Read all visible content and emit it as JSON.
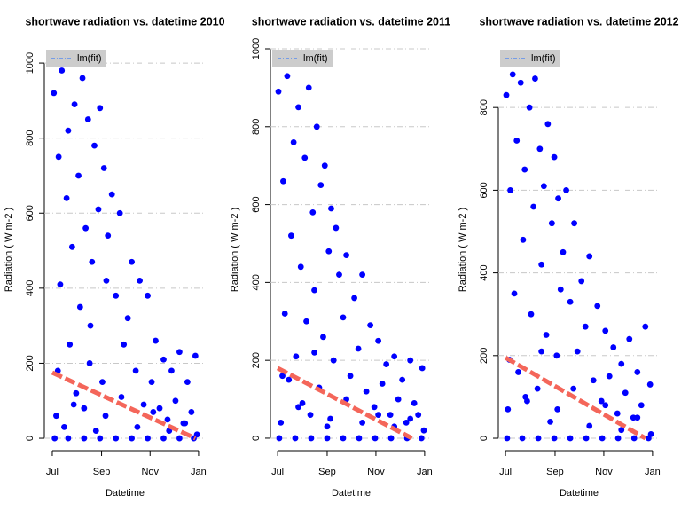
{
  "chart_data": [
    {
      "type": "scatter",
      "title": "shortwave radiation vs. datetime 2010",
      "xlabel": "Datetime",
      "ylabel": "Radiation ( W m-2 )",
      "xlim": [
        -10,
        193
      ],
      "ylim": [
        -33,
        1038
      ],
      "xticks": [
        {
          "value": 0,
          "label": "Jul"
        },
        {
          "value": 62,
          "label": "Sep"
        },
        {
          "value": 123,
          "label": "Nov"
        },
        {
          "value": 184,
          "label": "Jan"
        }
      ],
      "yticks": [
        0,
        200,
        400,
        600,
        800,
        1000
      ],
      "grid": true,
      "legend": "topleft",
      "series": [
        {
          "color": "#0000ff",
          "x": [
            2,
            5,
            8,
            10,
            12,
            15,
            18,
            20,
            22,
            25,
            28,
            30,
            33,
            35,
            38,
            40,
            42,
            45,
            48,
            50,
            53,
            55,
            58,
            60,
            63,
            65,
            68,
            70,
            75,
            80,
            85,
            90,
            95,
            100,
            105,
            110,
            115,
            120,
            125,
            130,
            135,
            140,
            145,
            150,
            155,
            160,
            165,
            170,
            175,
            180,
            3,
            20,
            40,
            60,
            80,
            100,
            120,
            140,
            160,
            178,
            7,
            27,
            47,
            67,
            87,
            107,
            127,
            147,
            167,
            182
          ],
          "values": [
            920,
            60,
            750,
            410,
            980,
            30,
            640,
            820,
            250,
            510,
            890,
            120,
            700,
            350,
            960,
            80,
            560,
            850,
            300,
            470,
            780,
            20,
            610,
            880,
            150,
            720,
            420,
            540,
            650,
            380,
            600,
            250,
            320,
            470,
            180,
            420,
            90,
            380,
            150,
            260,
            80,
            210,
            50,
            180,
            100,
            230,
            40,
            150,
            70,
            220,
            0,
            0,
            0,
            0,
            0,
            0,
            0,
            0,
            0,
            0,
            180,
            90,
            200,
            60,
            110,
            30,
            70,
            20,
            40,
            10
          ]
        },
        {
          "name": "lm(fit)",
          "type": "line",
          "color": "#f4665a",
          "legend_color": "#1e6cff",
          "x": [
            0,
            180
          ],
          "values": [
            175,
            0
          ]
        }
      ]
    },
    {
      "type": "scatter",
      "title": "shortwave radiation vs. datetime 2011",
      "xlabel": "Datetime",
      "ylabel": "Radiation ( W m-2 )",
      "xlim": [
        -9,
        193
      ],
      "ylim": [
        -32,
        1000
      ],
      "xticks": [
        {
          "value": 0,
          "label": "Jul"
        },
        {
          "value": 62,
          "label": "Sep"
        },
        {
          "value": 123,
          "label": "Nov"
        },
        {
          "value": 184,
          "label": "Jan"
        }
      ],
      "yticks": [
        0,
        200,
        400,
        600,
        800,
        1000
      ],
      "grid": true,
      "legend": "topleft",
      "series": [
        {
          "color": "#0000ff",
          "x": [
            1,
            4,
            7,
            9,
            12,
            14,
            17,
            20,
            23,
            26,
            29,
            31,
            34,
            36,
            39,
            41,
            44,
            46,
            49,
            52,
            54,
            57,
            59,
            62,
            64,
            67,
            70,
            73,
            77,
            82,
            86,
            91,
            96,
            101,
            106,
            111,
            116,
            121,
            126,
            131,
            136,
            141,
            146,
            151,
            156,
            161,
            166,
            171,
            176,
            181,
            2,
            22,
            42,
            62,
            82,
            102,
            122,
            142,
            162,
            180,
            6,
            26,
            46,
            66,
            86,
            106,
            126,
            146,
            166,
            183
          ],
          "values": [
            890,
            40,
            660,
            320,
            930,
            150,
            520,
            760,
            210,
            850,
            440,
            90,
            720,
            300,
            900,
            60,
            580,
            380,
            800,
            130,
            650,
            260,
            700,
            30,
            480,
            590,
            200,
            540,
            420,
            310,
            470,
            160,
            360,
            230,
            420,
            120,
            290,
            80,
            250,
            140,
            190,
            60,
            210,
            100,
            150,
            40,
            200,
            90,
            60,
            180,
            0,
            0,
            0,
            0,
            0,
            0,
            0,
            0,
            0,
            0,
            160,
            80,
            220,
            50,
            100,
            40,
            60,
            30,
            50,
            20
          ]
        },
        {
          "name": "lm(fit)",
          "type": "line",
          "color": "#f4665a",
          "legend_color": "#1e6cff",
          "x": [
            0,
            168
          ],
          "values": [
            180,
            0
          ]
        }
      ]
    },
    {
      "type": "scatter",
      "title": "shortwave radiation vs. datetime 2012",
      "xlabel": "Datetime",
      "ylabel": "Radiation ( W m-2 )",
      "xlim": [
        -9,
        193
      ],
      "ylim": [
        -30,
        942
      ],
      "xticks": [
        {
          "value": 0,
          "label": "Jul"
        },
        {
          "value": 62,
          "label": "Sep"
        },
        {
          "value": 123,
          "label": "Nov"
        },
        {
          "value": 184,
          "label": "Jan"
        }
      ],
      "yticks": [
        0,
        200,
        400,
        600,
        800
      ],
      "grid": true,
      "legend": "topleft",
      "series": [
        {
          "color": "#0000ff",
          "x": [
            1,
            3,
            6,
            9,
            11,
            14,
            16,
            19,
            22,
            24,
            27,
            30,
            32,
            35,
            37,
            40,
            43,
            45,
            48,
            51,
            53,
            56,
            58,
            61,
            64,
            66,
            69,
            72,
            76,
            81,
            86,
            90,
            95,
            100,
            105,
            110,
            115,
            120,
            125,
            130,
            135,
            140,
            145,
            150,
            155,
            160,
            165,
            170,
            175,
            181,
            2,
            21,
            41,
            61,
            81,
            101,
            121,
            141,
            161,
            179,
            5,
            25,
            45,
            65,
            85,
            105,
            125,
            145,
            165,
            182
          ],
          "values": [
            830,
            70,
            600,
            880,
            350,
            720,
            160,
            860,
            480,
            650,
            90,
            800,
            300,
            560,
            870,
            120,
            700,
            420,
            610,
            250,
            760,
            40,
            520,
            680,
            200,
            580,
            360,
            450,
            600,
            330,
            520,
            210,
            380,
            270,
            440,
            140,
            320,
            90,
            260,
            150,
            220,
            60,
            180,
            110,
            240,
            50,
            160,
            80,
            270,
            130,
            0,
            0,
            0,
            0,
            0,
            0,
            0,
            0,
            0,
            0,
            190,
            100,
            210,
            70,
            120,
            30,
            80,
            20,
            50,
            10
          ]
        },
        {
          "name": "lm(fit)",
          "type": "line",
          "color": "#f4665a",
          "legend_color": "#1e6cff",
          "x": [
            0,
            175
          ],
          "values": [
            195,
            0
          ]
        }
      ]
    }
  ]
}
